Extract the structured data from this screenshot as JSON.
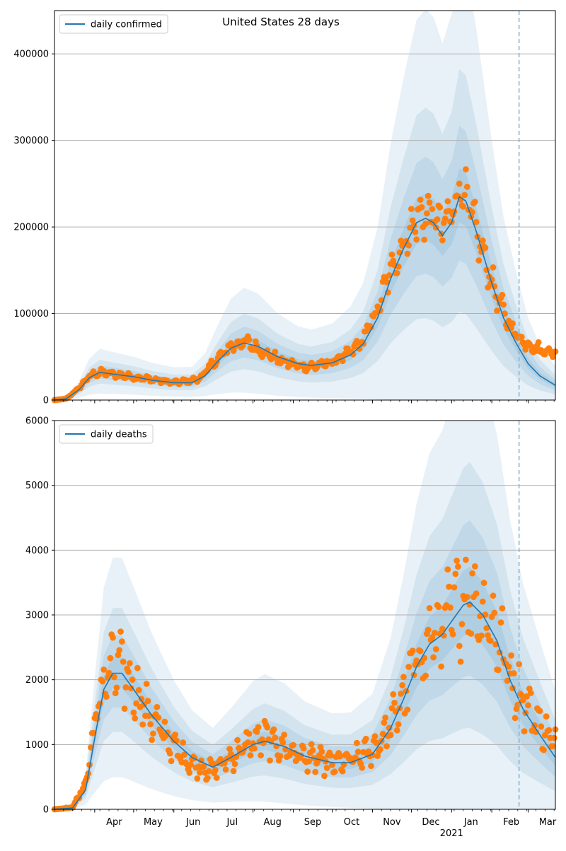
{
  "figure": {
    "title": "United States 28 days"
  },
  "colors": {
    "model_line": "#1f77b4",
    "observed_points": "#ff7f0e",
    "bands": "#1f77b4",
    "forecast_divider": "#7fb3d5",
    "grid": "#b0b0b0"
  },
  "x_axis": {
    "start": "2020-03-01",
    "end": "2021-03-22",
    "month_ticks": [
      {
        "date": "2020-04-01",
        "label": "Apr"
      },
      {
        "date": "2020-05-01",
        "label": "May"
      },
      {
        "date": "2020-06-01",
        "label": "Jun"
      },
      {
        "date": "2020-07-01",
        "label": "Jul"
      },
      {
        "date": "2020-08-01",
        "label": "Aug"
      },
      {
        "date": "2020-09-01",
        "label": "Sep"
      },
      {
        "date": "2020-10-01",
        "label": "Oct"
      },
      {
        "date": "2020-11-01",
        "label": "Nov"
      },
      {
        "date": "2020-12-01",
        "label": "Dec"
      },
      {
        "date": "2021-01-01",
        "label": "Jan"
      },
      {
        "date": "2021-02-01",
        "label": "Feb"
      },
      {
        "date": "2021-03-01",
        "label": "Mar"
      }
    ],
    "year_label": "2021",
    "year_label_date": "2021-01-01",
    "forecast_start": "2021-02-22"
  },
  "chart_data": [
    {
      "type": "line",
      "legend": "daily confirmed",
      "legend_position": "top-left",
      "grid": "horizontal",
      "ylim": [
        0,
        450000
      ],
      "yticks": [
        0,
        100000,
        200000,
        300000,
        400000
      ],
      "line_knots": [
        [
          "2020-03-01",
          0
        ],
        [
          "2020-03-10",
          1500
        ],
        [
          "2020-03-20",
          12000
        ],
        [
          "2020-03-28",
          26000
        ],
        [
          "2020-04-05",
          32000
        ],
        [
          "2020-04-15",
          30000
        ],
        [
          "2020-05-01",
          27000
        ],
        [
          "2020-05-15",
          23000
        ],
        [
          "2020-06-01",
          20000
        ],
        [
          "2020-06-15",
          20000
        ],
        [
          "2020-06-25",
          28000
        ],
        [
          "2020-07-05",
          45000
        ],
        [
          "2020-07-15",
          60000
        ],
        [
          "2020-07-25",
          66000
        ],
        [
          "2020-08-05",
          62000
        ],
        [
          "2020-08-20",
          50000
        ],
        [
          "2020-09-05",
          42000
        ],
        [
          "2020-09-15",
          40000
        ],
        [
          "2020-10-01",
          43000
        ],
        [
          "2020-10-15",
          52000
        ],
        [
          "2020-10-25",
          65000
        ],
        [
          "2020-11-05",
          95000
        ],
        [
          "2020-11-15",
          140000
        ],
        [
          "2020-11-25",
          175000
        ],
        [
          "2020-12-05",
          205000
        ],
        [
          "2020-12-12",
          210000
        ],
        [
          "2020-12-18",
          205000
        ],
        [
          "2020-12-25",
          190000
        ],
        [
          "2021-01-01",
          205000
        ],
        [
          "2021-01-07",
          235000
        ],
        [
          "2021-01-12",
          230000
        ],
        [
          "2021-01-20",
          195000
        ],
        [
          "2021-02-01",
          135000
        ],
        [
          "2021-02-10",
          95000
        ],
        [
          "2021-02-20",
          65000
        ],
        [
          "2021-03-01",
          42000
        ],
        [
          "2021-03-10",
          28000
        ],
        [
          "2021-03-22",
          17000
        ]
      ],
      "band_relative_widths": [
        0.1,
        0.25,
        0.45,
        0.85
      ],
      "points_knots": [
        [
          "2020-03-01",
          0
        ],
        [
          "2020-03-10",
          1500
        ],
        [
          "2020-03-20",
          14000
        ],
        [
          "2020-03-28",
          28000
        ],
        [
          "2020-04-05",
          32000
        ],
        [
          "2020-04-20",
          29000
        ],
        [
          "2020-05-10",
          25000
        ],
        [
          "2020-06-01",
          20000
        ],
        [
          "2020-06-20",
          24000
        ],
        [
          "2020-07-01",
          42000
        ],
        [
          "2020-07-15",
          62000
        ],
        [
          "2020-07-25",
          68000
        ],
        [
          "2020-08-10",
          55000
        ],
        [
          "2020-08-25",
          44000
        ],
        [
          "2020-09-10",
          38000
        ],
        [
          "2020-09-20",
          40000
        ],
        [
          "2020-10-01",
          44000
        ],
        [
          "2020-10-15",
          55000
        ],
        [
          "2020-10-25",
          70000
        ],
        [
          "2020-11-05",
          105000
        ],
        [
          "2020-11-15",
          150000
        ],
        [
          "2020-11-25",
          180000
        ],
        [
          "2020-12-05",
          210000
        ],
        [
          "2020-12-15",
          215000
        ],
        [
          "2020-12-25",
          200000
        ],
        [
          "2021-01-01",
          215000
        ],
        [
          "2021-01-08",
          250000
        ],
        [
          "2021-01-15",
          220000
        ],
        [
          "2021-01-25",
          170000
        ],
        [
          "2021-02-05",
          120000
        ],
        [
          "2021-02-15",
          85000
        ],
        [
          "2021-02-25",
          68000
        ],
        [
          "2021-03-10",
          58000
        ],
        [
          "2021-03-22",
          55000
        ]
      ],
      "points_relative_scatter": 0.15
    },
    {
      "type": "line",
      "legend": "daily deaths",
      "legend_position": "top-left",
      "grid": "horizontal",
      "ylim": [
        0,
        6000
      ],
      "yticks": [
        0,
        1000,
        2000,
        3000,
        4000,
        5000,
        6000
      ],
      "line_knots": [
        [
          "2020-03-01",
          0
        ],
        [
          "2020-03-15",
          20
        ],
        [
          "2020-03-25",
          300
        ],
        [
          "2020-04-01",
          1100
        ],
        [
          "2020-04-08",
          1850
        ],
        [
          "2020-04-15",
          2100
        ],
        [
          "2020-04-22",
          2100
        ],
        [
          "2020-05-01",
          1850
        ],
        [
          "2020-05-15",
          1450
        ],
        [
          "2020-06-01",
          1050
        ],
        [
          "2020-06-15",
          800
        ],
        [
          "2020-07-01",
          650
        ],
        [
          "2020-07-15",
          800
        ],
        [
          "2020-08-01",
          1000
        ],
        [
          "2020-08-10",
          1050
        ],
        [
          "2020-08-25",
          970
        ],
        [
          "2020-09-10",
          820
        ],
        [
          "2020-10-01",
          720
        ],
        [
          "2020-10-15",
          720
        ],
        [
          "2020-11-01",
          850
        ],
        [
          "2020-11-15",
          1250
        ],
        [
          "2020-11-25",
          1700
        ],
        [
          "2020-12-05",
          2200
        ],
        [
          "2020-12-15",
          2550
        ],
        [
          "2020-12-25",
          2700
        ],
        [
          "2021-01-01",
          2900
        ],
        [
          "2021-01-10",
          3150
        ],
        [
          "2021-01-15",
          3200
        ],
        [
          "2021-01-25",
          3000
        ],
        [
          "2021-02-05",
          2600
        ],
        [
          "2021-02-15",
          2000
        ],
        [
          "2021-02-25",
          1550
        ],
        [
          "2021-03-10",
          1150
        ],
        [
          "2021-03-22",
          800
        ]
      ],
      "band_relative_widths": [
        0.12,
        0.28,
        0.48,
        0.85
      ],
      "points_knots": [
        [
          "2020-03-01",
          0
        ],
        [
          "2020-03-15",
          30
        ],
        [
          "2020-03-25",
          400
        ],
        [
          "2020-04-01",
          1300
        ],
        [
          "2020-04-08",
          2000
        ],
        [
          "2020-04-15",
          2200
        ],
        [
          "2020-04-22",
          2150
        ],
        [
          "2020-05-01",
          1900
        ],
        [
          "2020-05-15",
          1400
        ],
        [
          "2020-06-01",
          950
        ],
        [
          "2020-06-15",
          700
        ],
        [
          "2020-07-01",
          600
        ],
        [
          "2020-07-15",
          800
        ],
        [
          "2020-08-01",
          1050
        ],
        [
          "2020-08-10",
          1100
        ],
        [
          "2020-08-25",
          950
        ],
        [
          "2020-09-10",
          800
        ],
        [
          "2020-10-01",
          700
        ],
        [
          "2020-10-15",
          750
        ],
        [
          "2020-11-01",
          900
        ],
        [
          "2020-11-15",
          1300
        ],
        [
          "2020-11-25",
          1750
        ],
        [
          "2020-12-05",
          2300
        ],
        [
          "2020-12-15",
          2600
        ],
        [
          "2020-12-25",
          2800
        ],
        [
          "2021-01-01",
          3000
        ],
        [
          "2021-01-10",
          3300
        ],
        [
          "2021-01-15",
          3350
        ],
        [
          "2021-01-25",
          3100
        ],
        [
          "2021-02-05",
          2700
        ],
        [
          "2021-02-15",
          2100
        ],
        [
          "2021-02-25",
          1700
        ],
        [
          "2021-03-10",
          1300
        ],
        [
          "2021-03-22",
          1000
        ]
      ],
      "points_relative_scatter": 0.3
    }
  ]
}
